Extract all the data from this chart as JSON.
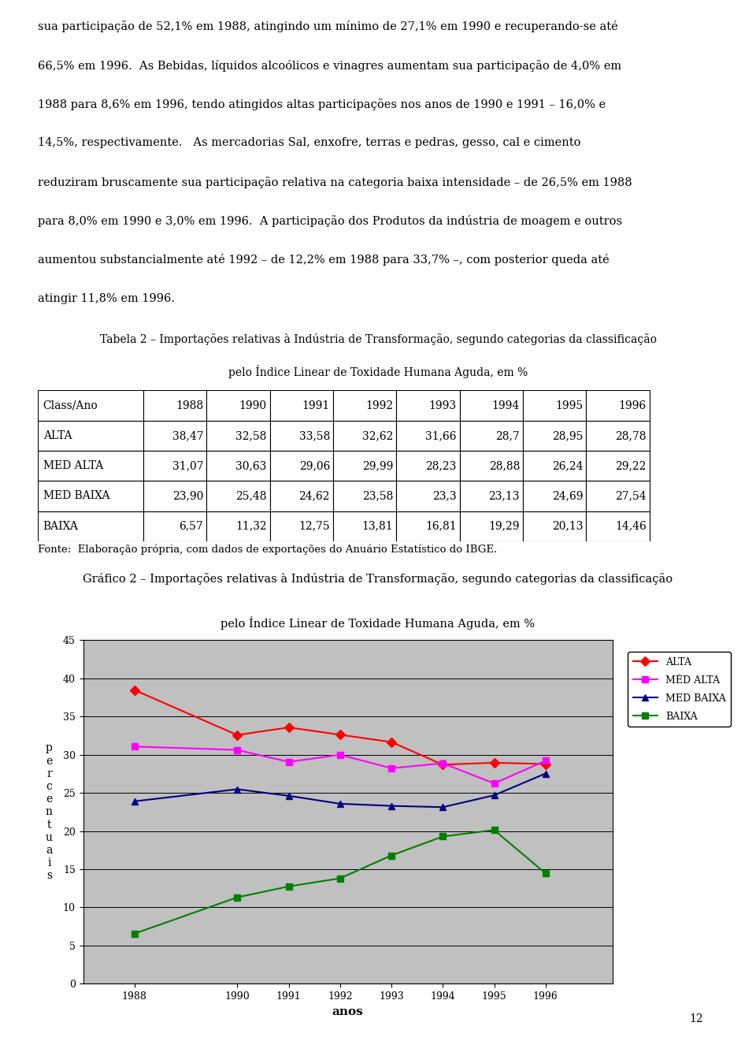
{
  "text_paragraphs": [
    "sua participação de 52,1% em 1988, atingindo um mínimo de 27,1% em 1990 e recuperando-se até",
    "66,5% em 1996.  As Bebidas, líquidos alcoólicos e vinagres aumentam sua participação de 4,0% em",
    "1988 para 8,6% em 1996, tendo atingidos altas participações nos anos de 1990 e 1991 – 16,0% e",
    "14,5%, respectivamente.   As mercadorias Sal, enxofre, terras e pedras, gesso, cal e cimento",
    "reduziram bruscamente sua participação relativa na categoria baixa intensidade – de 26,5% em 1988",
    "para 8,0% em 1990 e 3,0% em 1996.  A participação dos Produtos da indústria de moagem e outros",
    "aumentou substancialmente até 1992 – de 12,2% em 1988 para 33,7% –, com posterior queda até",
    "atingir 11,8% em 1996."
  ],
  "table_title_line1": "Tabela 2 – Importações relativas à Indústria de Transformação, segundo categorias da classificação",
  "table_title_line2": "pelo Índice Linear de Toxidade Humana Aguda, em %",
  "table_headers": [
    "Class/Ano",
    "1988",
    "1990",
    "1991",
    "1992",
    "1993",
    "1994",
    "1995",
    "1996"
  ],
  "table_data": [
    [
      "ALTA",
      "38,47",
      "32,58",
      "33,58",
      "32,62",
      "31,66",
      "28,7",
      "28,95",
      "28,78"
    ],
    [
      "MED ALTA",
      "31,07",
      "30,63",
      "29,06",
      "29,99",
      "28,23",
      "28,88",
      "26,24",
      "29,22"
    ],
    [
      "MED BAIXA",
      "23,90",
      "25,48",
      "24,62",
      "23,58",
      "23,3",
      "23,13",
      "24,69",
      "27,54"
    ],
    [
      "BAIXA",
      "6,57",
      "11,32",
      "12,75",
      "13,81",
      "16,81",
      "19,29",
      "20,13",
      "14,46"
    ]
  ],
  "table_footer": "Fonte:  Elaboração própria, com dados de exportações do Anuário Estatístico do IBGE.",
  "chart_title_line1": "Gráfico 2 – Importações relativas à Indústria de Transformação, segundo categorias da classificação",
  "chart_title_line2": "pelo Índice Linear de Toxidade Humana Aguda, em %",
  "years": [
    1988,
    1990,
    1991,
    1992,
    1993,
    1994,
    1995,
    1996
  ],
  "series_names": [
    "ALTA",
    "MÉD ALTA",
    "MED BAIXA",
    "BAIXA"
  ],
  "series_values": [
    [
      38.47,
      32.58,
      33.58,
      32.62,
      31.66,
      28.7,
      28.95,
      28.78
    ],
    [
      31.07,
      30.63,
      29.06,
      29.99,
      28.23,
      28.88,
      26.24,
      29.22
    ],
    [
      23.9,
      25.48,
      24.62,
      23.58,
      23.3,
      23.13,
      24.69,
      27.54
    ],
    [
      6.57,
      11.32,
      12.75,
      13.81,
      16.81,
      19.29,
      20.13,
      14.46
    ]
  ],
  "line_colors": [
    "#FF0000",
    "#FF00FF",
    "#000080",
    "#008000"
  ],
  "markers": [
    "D",
    "s",
    "^",
    "s"
  ],
  "ylim": [
    0,
    45
  ],
  "yticks": [
    0,
    5,
    10,
    15,
    20,
    25,
    30,
    35,
    40,
    45
  ],
  "plot_bg": "#C0C0C0",
  "page_number": "12",
  "text_fontsize": 10.5,
  "table_fontsize": 10.0,
  "chart_title_fontsize": 10.5
}
